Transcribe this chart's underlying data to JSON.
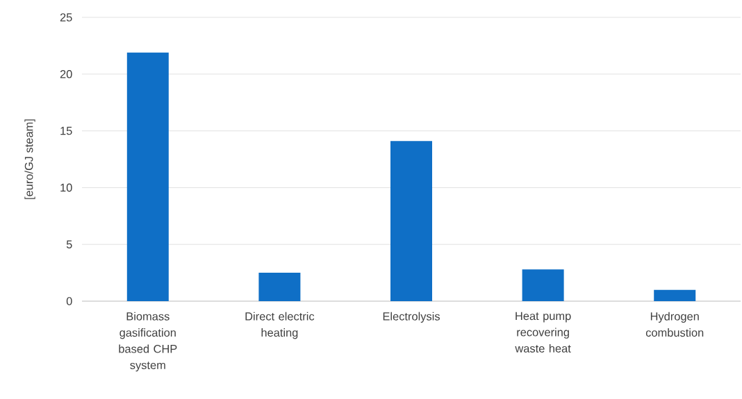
{
  "chart_data": {
    "type": "bar",
    "ylabel": "[euro/GJ steam]",
    "categories": [
      "Biomass gasification based CHP system",
      "Direct electric heating",
      "Electrolysis",
      "Heat pump recovering waste heat",
      "Hydrogen combustion"
    ],
    "values": [
      21.9,
      2.5,
      14.1,
      2.8,
      1.0
    ],
    "color": "#0f6fc6",
    "ylim": [
      0,
      25
    ],
    "yticks": [
      0,
      5,
      10,
      15,
      20,
      25
    ],
    "grid": "y"
  }
}
